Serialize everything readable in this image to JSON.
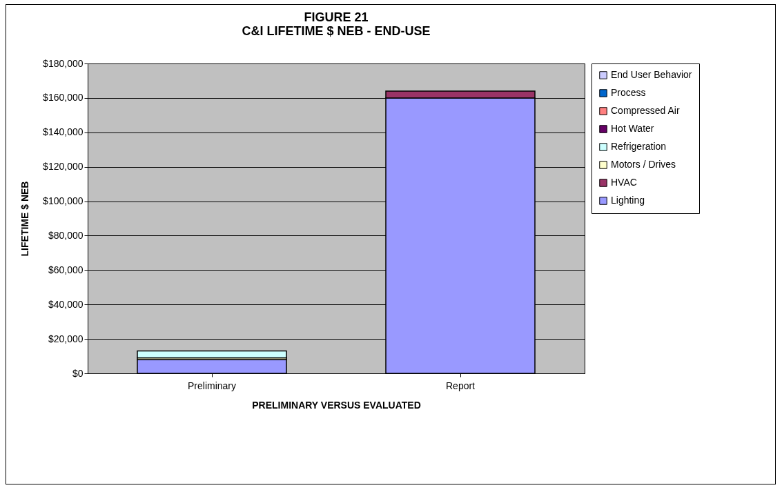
{
  "chart_data": {
    "type": "bar",
    "title": "FIGURE 21\nC&I LIFETIME $ NEB - END-USE",
    "xlabel": "PRELIMINARY VERSUS EVALUATED",
    "ylabel": "LIFETIME $ NEB",
    "categories": [
      "Preliminary",
      "Report"
    ],
    "stacked": true,
    "series": [
      {
        "name": "Lighting",
        "color": "#9999ff",
        "values": [
          8000,
          160000
        ]
      },
      {
        "name": "HVAC",
        "color": "#993366",
        "values": [
          null,
          4000
        ]
      },
      {
        "name": "Motors / Drives",
        "color": "#ffffcc",
        "values": [
          1000,
          null
        ]
      },
      {
        "name": "Refrigeration",
        "color": "#ccffff",
        "values": [
          4000,
          null
        ]
      },
      {
        "name": "Hot Water",
        "color": "#660066",
        "values": [
          null,
          null
        ]
      },
      {
        "name": "Compressed Air",
        "color": "#ff8080",
        "values": [
          null,
          null
        ]
      },
      {
        "name": "Process",
        "color": "#0066cc",
        "values": [
          null,
          null
        ]
      },
      {
        "name": "End User Behavior",
        "color": "#ccccff",
        "values": [
          null,
          null
        ]
      }
    ],
    "ylim": [
      0,
      180000
    ],
    "yticks": [
      {
        "value": 0,
        "label": "$0"
      },
      {
        "value": 20000,
        "label": "$20,000"
      },
      {
        "value": 40000,
        "label": "$40,000"
      },
      {
        "value": 60000,
        "label": "$60,000"
      },
      {
        "value": 80000,
        "label": "$80,000"
      },
      {
        "value": 100000,
        "label": "$100,000"
      },
      {
        "value": 120000,
        "label": "$120,000"
      },
      {
        "value": 140000,
        "label": "$140,000"
      },
      {
        "value": 160000,
        "label": "$160,000"
      },
      {
        "value": 180000,
        "label": "$180,000"
      }
    ],
    "grid": "y",
    "legend": "right"
  }
}
